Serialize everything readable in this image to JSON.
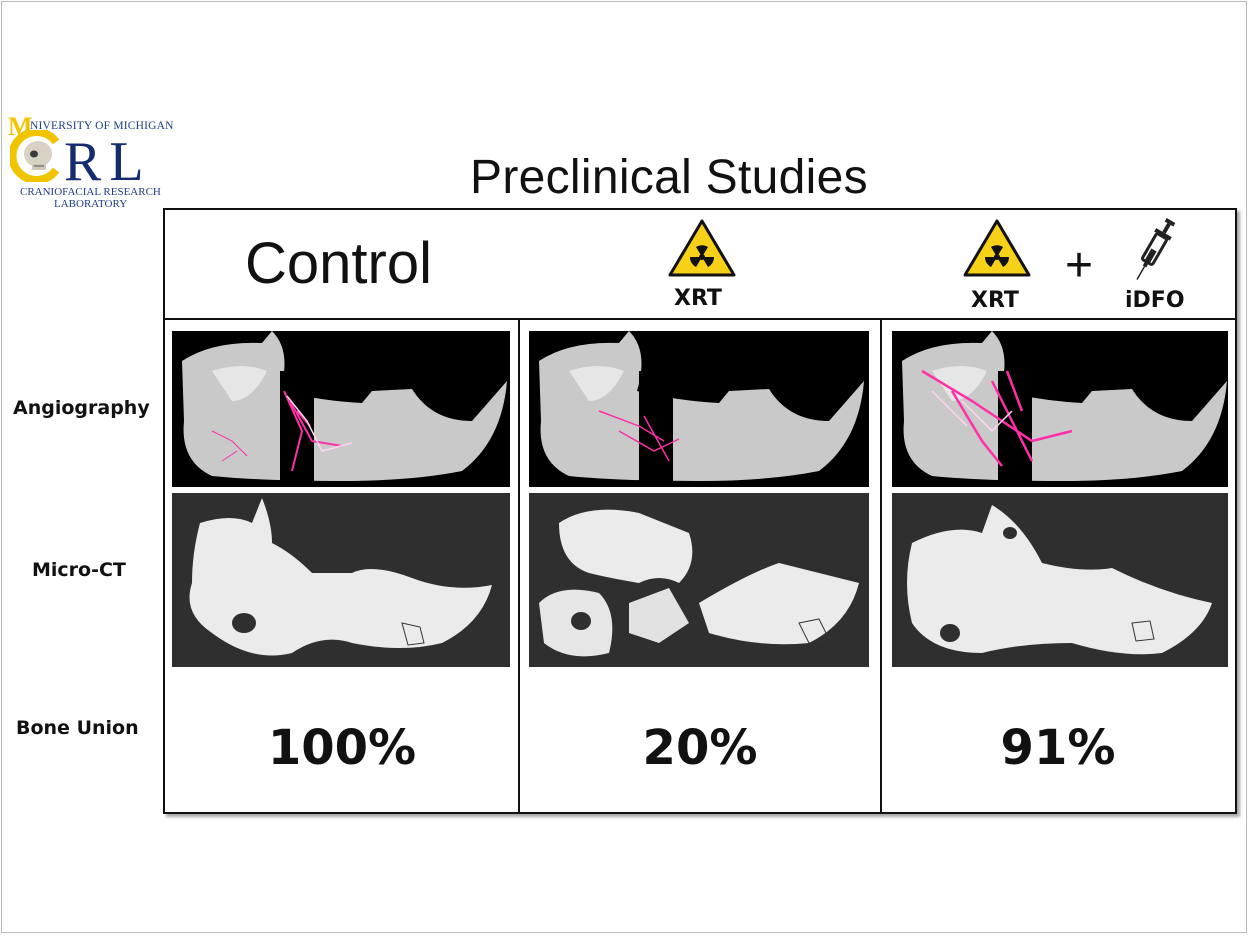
{
  "logo": {
    "univ": "NIVERSITY OF MICHIGAN",
    "letters": "RL",
    "sub1": "CRANIOFACIAL RESEARCH",
    "sub2": "LABORATORY"
  },
  "title": "Preclinical Studies",
  "columns": {
    "control": "Control",
    "xrt_label": "XRT",
    "plus": "+",
    "idfo_label": "iDFO"
  },
  "rows": {
    "angiography": "Angiography",
    "microct": "Micro-CT",
    "bone_union": "Bone Union"
  },
  "bone_union": {
    "control": "100%",
    "xrt": "20%",
    "xrt_idfo": "91%"
  },
  "colors": {
    "hazard_yellow": "#f7d117",
    "vessel_magenta": "#ff2fa8",
    "logo_navy": "#142b6f",
    "logo_gold": "#f2c400"
  }
}
